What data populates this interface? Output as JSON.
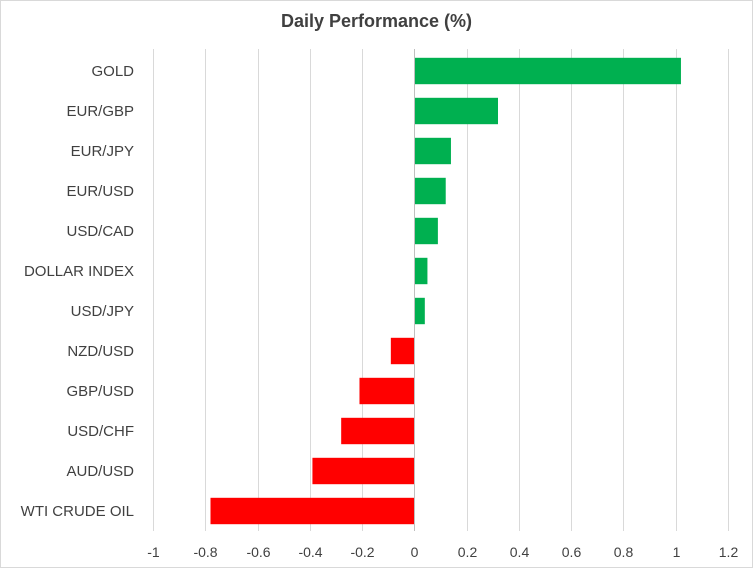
{
  "chart_data": {
    "type": "bar",
    "orientation": "horizontal",
    "title": "Daily Performance (%)",
    "xlabel": "",
    "ylabel": "",
    "categories": [
      "GOLD",
      "EUR/GBP",
      "EUR/JPY",
      "EUR/USD",
      "USD/CAD",
      "DOLLAR INDEX",
      "USD/JPY",
      "NZD/USD",
      "GBP/USD",
      "USD/CHF",
      "AUD/USD",
      "WTI CRUDE OIL"
    ],
    "values": [
      1.02,
      0.32,
      0.14,
      0.12,
      0.09,
      0.05,
      0.04,
      -0.09,
      -0.21,
      -0.28,
      -0.39,
      -0.78
    ],
    "xlim": [
      -1,
      1.2
    ],
    "xticks": [
      -1,
      -0.8,
      -0.6,
      -0.4,
      -0.2,
      0,
      0.2,
      0.4,
      0.6,
      0.8,
      1,
      1.2
    ],
    "xtick_labels": [
      "-1",
      "-0.8",
      "-0.6",
      "-0.4",
      "-0.2",
      "0",
      "0.2",
      "0.4",
      "0.6",
      "0.8",
      "1",
      "1.2"
    ],
    "grid": true,
    "colors": {
      "positive": "#00b050",
      "negative": "#ff0000"
    }
  }
}
